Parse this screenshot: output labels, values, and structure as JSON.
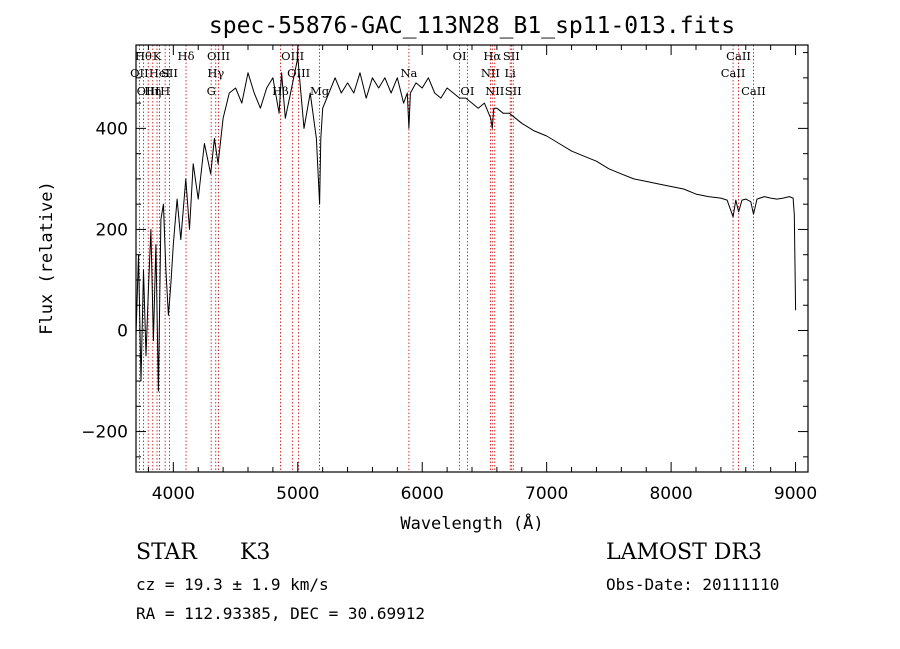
{
  "chart_data": {
    "type": "line",
    "title": "spec-55876-GAC_113N28_B1_sp11-013.fits",
    "xlabel": "Wavelength (Å)",
    "ylabel": "Flux (relative)",
    "xlim": [
      3700,
      9100
    ],
    "ylim": [
      -280,
      565
    ],
    "xticks": [
      4000,
      5000,
      6000,
      7000,
      8000,
      9000
    ],
    "yticks": [
      -200,
      0,
      200,
      400
    ],
    "series": [
      {
        "name": "flux",
        "x": [
          3700,
          3720,
          3740,
          3760,
          3780,
          3800,
          3820,
          3840,
          3860,
          3880,
          3900,
          3920,
          3940,
          3960,
          3980,
          4000,
          4030,
          4060,
          4100,
          4130,
          4160,
          4200,
          4250,
          4300,
          4330,
          4360,
          4400,
          4450,
          4500,
          4550,
          4600,
          4650,
          4700,
          4750,
          4800,
          4850,
          4870,
          4900,
          4950,
          5000,
          5050,
          5100,
          5150,
          5175,
          5185,
          5200,
          5250,
          5300,
          5350,
          5400,
          5450,
          5500,
          5550,
          5600,
          5650,
          5700,
          5750,
          5800,
          5850,
          5880,
          5893,
          5905,
          5950,
          6000,
          6050,
          6100,
          6150,
          6200,
          6250,
          6300,
          6350,
          6400,
          6450,
          6500,
          6550,
          6563,
          6575,
          6600,
          6650,
          6700,
          6750,
          6800,
          6900,
          7000,
          7100,
          7200,
          7300,
          7400,
          7500,
          7600,
          7700,
          7800,
          7900,
          8000,
          8100,
          8200,
          8300,
          8400,
          8450,
          8498,
          8520,
          8542,
          8570,
          8600,
          8640,
          8662,
          8690,
          8750,
          8800,
          8850,
          8900,
          8950,
          8980,
          8990,
          9000
        ],
        "y": [
          -10,
          150,
          -100,
          120,
          -50,
          80,
          200,
          -20,
          170,
          -120,
          220,
          250,
          120,
          30,
          90,
          170,
          260,
          180,
          300,
          200,
          330,
          260,
          370,
          310,
          380,
          330,
          420,
          470,
          480,
          450,
          510,
          470,
          440,
          480,
          500,
          430,
          510,
          420,
          480,
          540,
          400,
          470,
          380,
          250,
          380,
          440,
          470,
          500,
          470,
          490,
          470,
          510,
          460,
          500,
          480,
          500,
          470,
          500,
          450,
          470,
          400,
          470,
          490,
          480,
          500,
          470,
          460,
          480,
          470,
          460,
          460,
          450,
          440,
          450,
          420,
          400,
          440,
          440,
          430,
          430,
          420,
          410,
          395,
          385,
          370,
          355,
          345,
          335,
          320,
          310,
          300,
          295,
          290,
          285,
          280,
          270,
          265,
          262,
          258,
          225,
          258,
          235,
          258,
          260,
          255,
          230,
          260,
          265,
          262,
          260,
          262,
          265,
          262,
          230,
          40
        ]
      }
    ],
    "lines": [
      {
        "x": 3727,
        "label": "OII",
        "row": 1
      },
      {
        "x": 3760,
        "label": "Hθ",
        "row": 0
      },
      {
        "x": 3798,
        "label": "OIII",
        "row": 2
      },
      {
        "x": 3835,
        "label": "Hη",
        "row": 2
      },
      {
        "x": 3869,
        "label": "K",
        "row": 0
      },
      {
        "x": 3889,
        "label": "HeI",
        "row": 1
      },
      {
        "x": 3934,
        "label": "H",
        "row": 2
      },
      {
        "x": 3969,
        "label": "SII",
        "row": 1
      },
      {
        "x": 4102,
        "label": "Hδ",
        "row": 0
      },
      {
        "x": 4304,
        "label": "G",
        "row": 2
      },
      {
        "x": 4341,
        "label": "Hγ",
        "row": 1
      },
      {
        "x": 4363,
        "label": "OIII",
        "row": 0
      },
      {
        "x": 4861,
        "label": "Hβ",
        "row": 2
      },
      {
        "x": 4959,
        "label": "OIII",
        "row": 0
      },
      {
        "x": 5007,
        "label": "OIII",
        "row": 1
      },
      {
        "x": 5175,
        "label": "Mg",
        "row": 2
      },
      {
        "x": 5893,
        "label": "Na",
        "row": 1
      },
      {
        "x": 6300,
        "label": "OI",
        "row": 0
      },
      {
        "x": 6363,
        "label": "OI",
        "row": 2
      },
      {
        "x": 6548,
        "label": "NII",
        "row": 1
      },
      {
        "x": 6563,
        "label": "Hα",
        "row": 0
      },
      {
        "x": 6583,
        "label": "NII",
        "row": 2
      },
      {
        "x": 6707,
        "label": "Li",
        "row": 1
      },
      {
        "x": 6716,
        "label": "SII",
        "row": 0
      },
      {
        "x": 6731,
        "label": "SII",
        "row": 2
      },
      {
        "x": 8498,
        "label": "CaII",
        "row": 1
      },
      {
        "x": 8542,
        "label": "CaII",
        "row": 0
      },
      {
        "x": 8662,
        "label": "CaII",
        "row": 2
      }
    ],
    "colors": {
      "spectrum": "#000000",
      "line_marker": "#cc0000",
      "axis": "#000000"
    }
  },
  "info": {
    "class_label": "STAR",
    "subclass": "K3",
    "survey": "LAMOST DR3",
    "redshift": "cz = 19.3 ± 1.9 km/s",
    "obs_date": "Obs-Date: 20111110",
    "coords": "RA = 112.93385, DEC =  30.69912"
  }
}
